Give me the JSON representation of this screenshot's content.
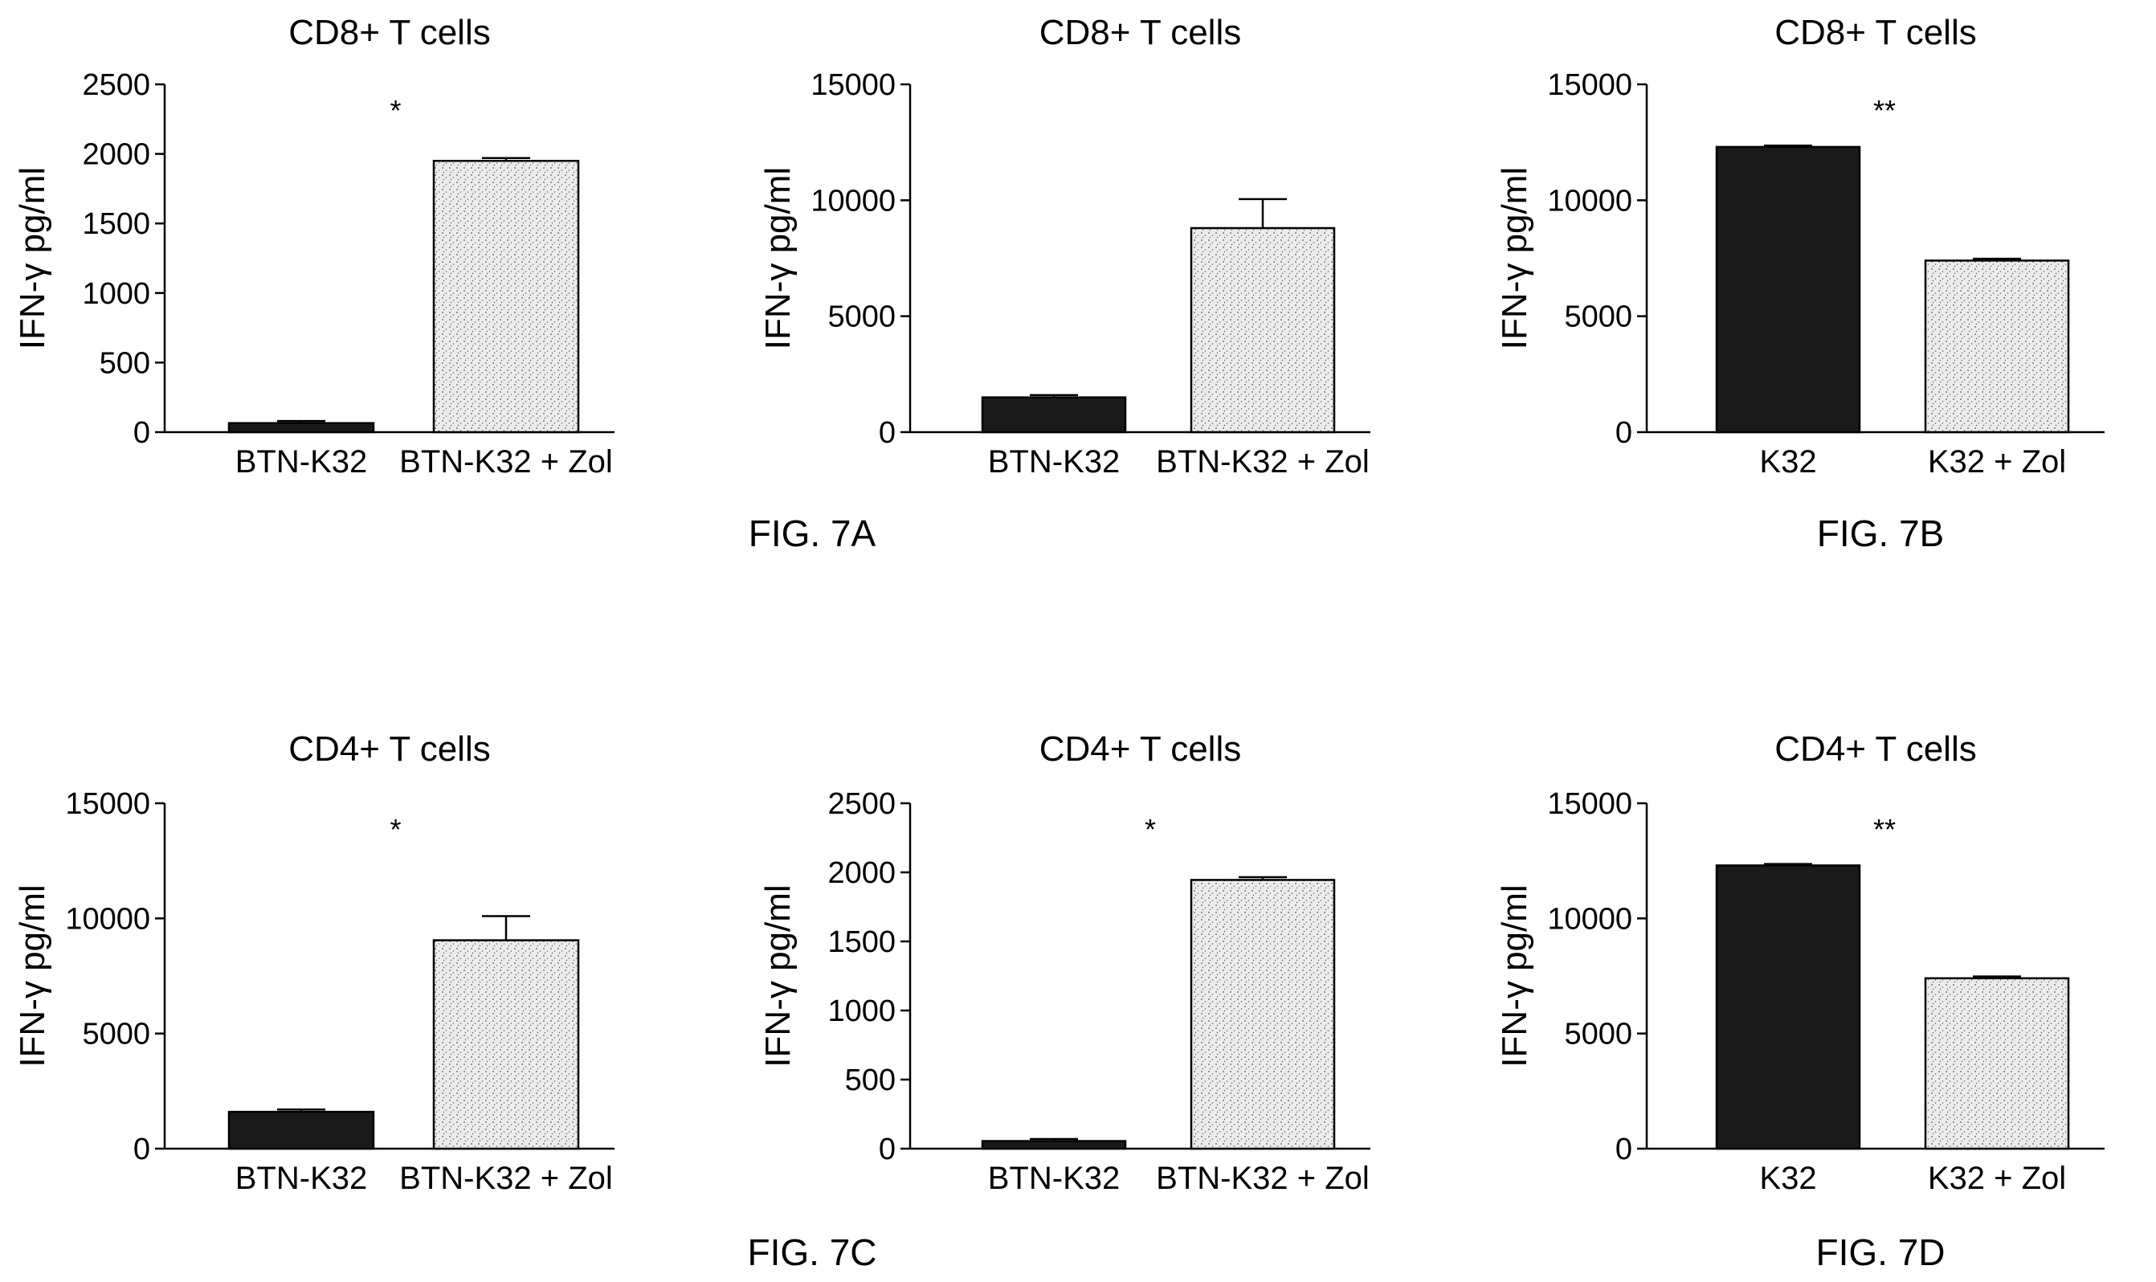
{
  "colors": {
    "dark_bar": "#1a1a1a",
    "light_bar": "#ececec",
    "stipple": "#555555",
    "axis": "#000000"
  },
  "figure_labels": [
    "FIG. 7A",
    "FIG. 7B",
    "FIG. 7C",
    "FIG. 7D"
  ],
  "chart_data": [
    {
      "type": "bar",
      "title": "CD8+ T cells",
      "ylabel": "IFN-γ pg/ml",
      "ylim": [
        0,
        2500
      ],
      "yticks": [
        0,
        500,
        1000,
        1500,
        2000,
        2500
      ],
      "categories": [
        "BTN-K32",
        "BTN-K32 + Zol"
      ],
      "values": [
        65,
        1950
      ],
      "errors": [
        15,
        20
      ],
      "significance": "*"
    },
    {
      "type": "bar",
      "title": "CD8+ T cells",
      "ylabel": "IFN-γ pg/ml",
      "ylim": [
        0,
        15000
      ],
      "yticks": [
        0,
        5000,
        10000,
        15000
      ],
      "categories": [
        "BTN-K32",
        "BTN-K32 + Zol"
      ],
      "values": [
        1500,
        8800
      ],
      "errors": [
        100,
        1250
      ],
      "significance": ""
    },
    {
      "type": "bar",
      "title": "CD8+ T cells",
      "ylabel": "IFN-γ pg/ml",
      "ylim": [
        0,
        15000
      ],
      "yticks": [
        0,
        5000,
        10000,
        15000
      ],
      "categories": [
        "K32",
        "K32 + Zol"
      ],
      "values": [
        12300,
        7400
      ],
      "errors": [
        60,
        80
      ],
      "significance": "**"
    },
    {
      "type": "bar",
      "title": "CD4+ T cells",
      "ylabel": "IFN-γ pg/ml",
      "ylim": [
        0,
        15000
      ],
      "yticks": [
        0,
        5000,
        10000,
        15000
      ],
      "categories": [
        "BTN-K32",
        "BTN-K32 + Zol"
      ],
      "values": [
        1600,
        9050
      ],
      "errors": [
        100,
        1050
      ],
      "significance": "*"
    },
    {
      "type": "bar",
      "title": "CD4+ T cells",
      "ylabel": "IFN-γ pg/ml",
      "ylim": [
        0,
        2500
      ],
      "yticks": [
        0,
        500,
        1000,
        1500,
        2000,
        2500
      ],
      "categories": [
        "BTN-K32",
        "BTN-K32 + Zol"
      ],
      "values": [
        55,
        1945
      ],
      "errors": [
        15,
        20
      ],
      "significance": "*"
    },
    {
      "type": "bar",
      "title": "CD4+ T cells",
      "ylabel": "IFN-γ pg/ml",
      "ylim": [
        0,
        15000
      ],
      "yticks": [
        0,
        5000,
        10000,
        15000
      ],
      "categories": [
        "K32",
        "K32 + Zol"
      ],
      "values": [
        12300,
        7400
      ],
      "errors": [
        60,
        80
      ],
      "significance": "**"
    }
  ]
}
